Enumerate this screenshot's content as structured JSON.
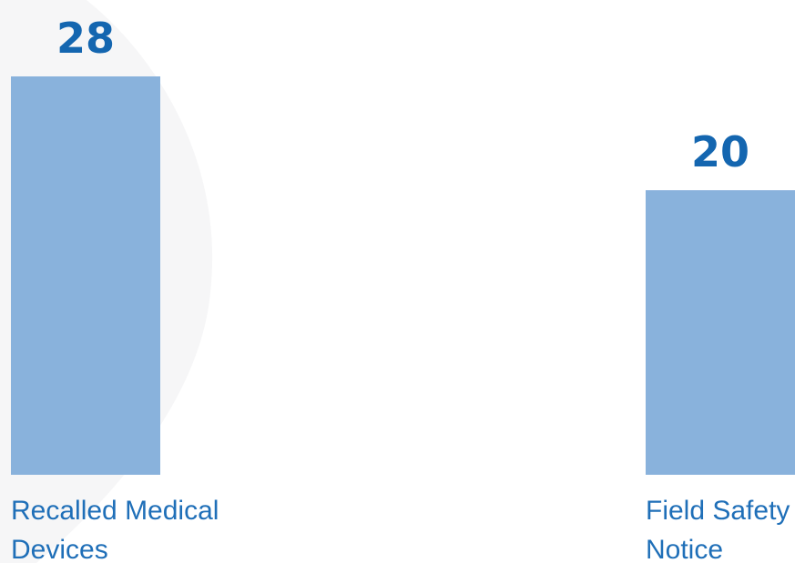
{
  "chart_data": {
    "type": "bar",
    "categories": [
      "Recalled Medical Devices",
      "Field Safety Notice"
    ],
    "category_lines": [
      [
        "Recalled Medical",
        "Devices"
      ],
      [
        "Field Safety",
        "Notice"
      ]
    ],
    "values": [
      28,
      20
    ],
    "value_labels": [
      "28",
      "20"
    ],
    "title": "",
    "xlabel": "",
    "ylabel": "",
    "ylim": [
      0,
      28
    ],
    "grid": false,
    "legend": "none"
  },
  "colors": {
    "bar": "#89b2dc",
    "value_text": "#1466b0",
    "category_text": "#1f6fb8",
    "background_shape": "#f6f6f7"
  }
}
